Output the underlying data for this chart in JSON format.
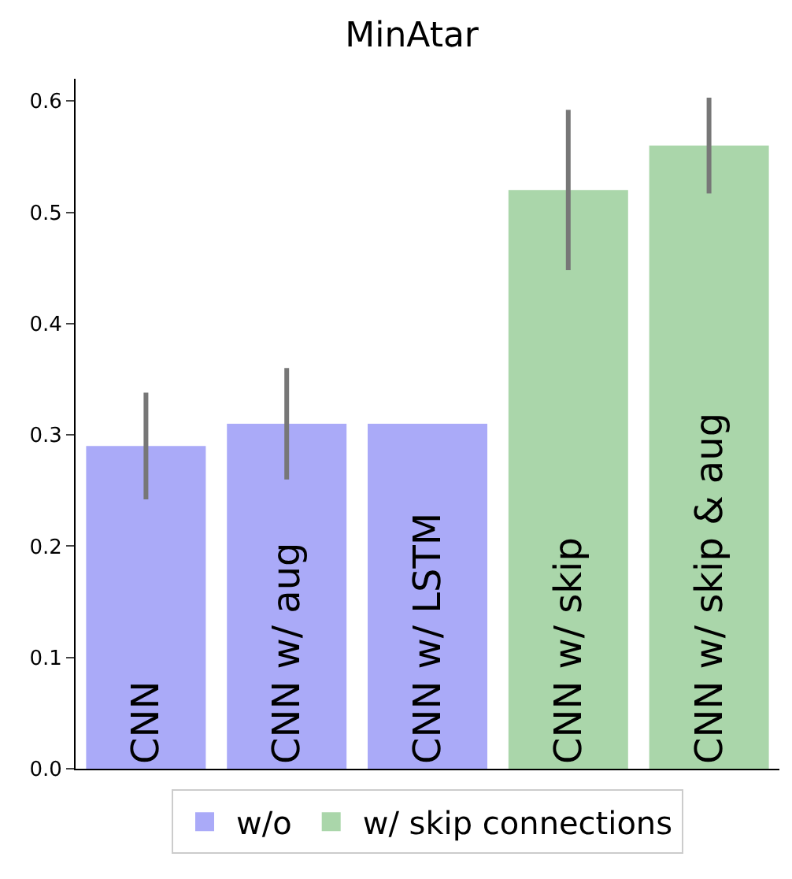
{
  "chart_data": {
    "type": "bar",
    "title": "MinAtar",
    "categories": [
      "CNN",
      "CNN w/ aug",
      "CNN w/ LSTM",
      "CNN w/ skip",
      "CNN w/ skip & aug"
    ],
    "series": [
      {
        "name": "w/o",
        "color": "#aaaaf8",
        "values": [
          0.29,
          0.31,
          0.31,
          null,
          null
        ],
        "errors": [
          0.048,
          0.05,
          null,
          null,
          null
        ]
      },
      {
        "name": "w/ skip connections",
        "color": "#aad6aa",
        "values": [
          null,
          null,
          null,
          0.52,
          0.56
        ],
        "errors": [
          null,
          null,
          null,
          0.072,
          0.043
        ]
      }
    ],
    "ylim": [
      0,
      0.62
    ],
    "yticks": [
      {
        "value": 0,
        "label": "0.0"
      },
      0.1,
      0.2,
      0.3,
      0.4,
      0.5,
      0.6
    ],
    "grid": false,
    "legend": "bottom",
    "tick_labels": "y"
  }
}
